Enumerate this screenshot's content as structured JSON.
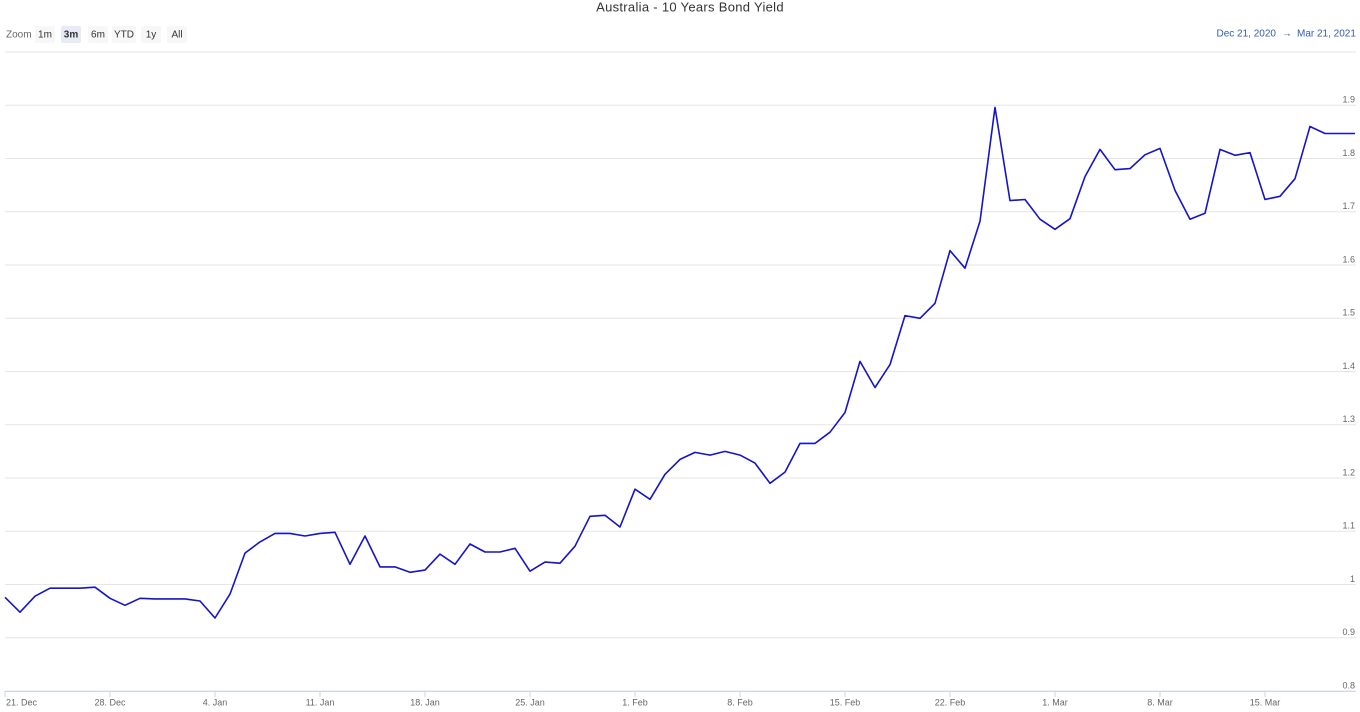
{
  "toolbar": {
    "zoom_label": "Zoom",
    "buttons": [
      "1m",
      "3m",
      "6m",
      "YTD",
      "1y",
      "All"
    ],
    "active_button": 1,
    "range_from": "Dec 21, 2020",
    "range_arrow": "→",
    "range_to": "Mar 21, 2021"
  },
  "chart_data": {
    "type": "line",
    "title": "Australia - 10 Years Bond Yield",
    "color": "#1414c8",
    "grid": true,
    "x": [
      0,
      1,
      2,
      3,
      4,
      5,
      6,
      7,
      8,
      9,
      10,
      11,
      12,
      13,
      14,
      15,
      16,
      17,
      18,
      19,
      20,
      21,
      22,
      23,
      24,
      25,
      26,
      27,
      28,
      29,
      30,
      31,
      32,
      33,
      34,
      35,
      36,
      37,
      38,
      39,
      40,
      41,
      42,
      43,
      44,
      45,
      46,
      47,
      48,
      49,
      50,
      51,
      52,
      53,
      54,
      55,
      56,
      57,
      58,
      59,
      60,
      61,
      62,
      63,
      64,
      65,
      66,
      67,
      68,
      69,
      70,
      71,
      72,
      73,
      74,
      75,
      76,
      77,
      78,
      79,
      80,
      81,
      82,
      83,
      84,
      85,
      86,
      87,
      88,
      89,
      90
    ],
    "values": [
      0.976,
      0.948,
      0.978,
      0.993,
      0.993,
      0.993,
      0.995,
      0.974,
      0.961,
      0.974,
      0.973,
      0.973,
      0.973,
      0.969,
      0.937,
      0.982,
      1.059,
      1.08,
      1.096,
      1.096,
      1.091,
      1.096,
      1.098,
      1.038,
      1.091,
      1.033,
      1.033,
      1.023,
      1.027,
      1.057,
      1.038,
      1.076,
      1.061,
      1.061,
      1.068,
      1.025,
      1.042,
      1.04,
      1.072,
      1.128,
      1.13,
      1.108,
      1.179,
      1.16,
      1.207,
      1.235,
      1.248,
      1.243,
      1.25,
      1.243,
      1.228,
      1.19,
      1.211,
      1.265,
      1.265,
      1.286,
      1.323,
      1.419,
      1.37,
      1.413,
      1.505,
      1.5,
      1.528,
      1.627,
      1.594,
      1.682,
      1.896,
      1.721,
      1.723,
      1.686,
      1.667,
      1.687,
      1.766,
      1.817,
      1.779,
      1.781,
      1.807,
      1.819,
      1.74,
      1.686,
      1.697,
      1.817,
      1.806,
      1.811,
      1.723,
      1.729,
      1.762,
      1.86,
      1.847,
      1.847,
      1.847
    ],
    "xlim": [
      0,
      90
    ],
    "xticks": [
      {
        "value": 0,
        "label": "21. Dec"
      },
      {
        "value": 7,
        "label": "28. Dec"
      },
      {
        "value": 14,
        "label": "4. Jan"
      },
      {
        "value": 21,
        "label": "11. Jan"
      },
      {
        "value": 28,
        "label": "18. Jan"
      },
      {
        "value": 35,
        "label": "25. Jan"
      },
      {
        "value": 42,
        "label": "1. Feb"
      },
      {
        "value": 49,
        "label": "8. Feb"
      },
      {
        "value": 56,
        "label": "15. Feb"
      },
      {
        "value": 63,
        "label": "22. Feb"
      },
      {
        "value": 70,
        "label": "1. Mar"
      },
      {
        "value": 77,
        "label": "8. Mar"
      },
      {
        "value": 84,
        "label": "15. Mar"
      }
    ],
    "ylim": [
      0.8,
      2.0
    ],
    "yticks": [
      0.8,
      0.9,
      1,
      1.1,
      1.2,
      1.3,
      1.4,
      1.5,
      1.6,
      1.7,
      1.8,
      1.9
    ]
  }
}
